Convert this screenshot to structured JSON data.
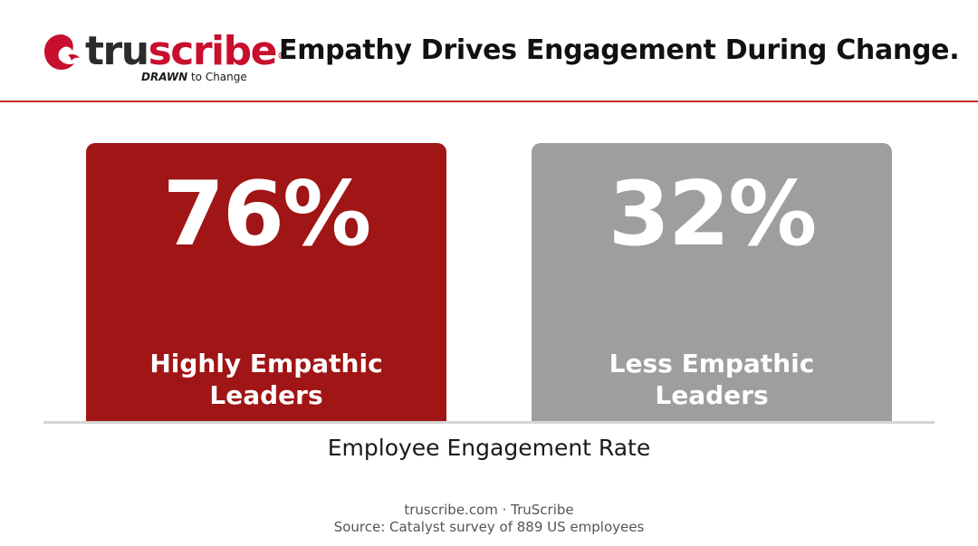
{
  "brand": {
    "name_part1": "tru",
    "name_part2": "scribe",
    "registered": "®",
    "tagline_strong": "DRAWN",
    "tagline_rest": "to Change",
    "colors": {
      "red": "#c8102e",
      "dark": "#2b2b2b"
    }
  },
  "header": {
    "title": "Empathy Drives Engagement During Change."
  },
  "chart_data": {
    "type": "bar",
    "title": "Empathy Drives Engagement During Change.",
    "xlabel": "Employee Engagement Rate",
    "ylabel": "",
    "ylim": [
      0,
      100
    ],
    "grid": false,
    "categories": [
      "Highly Empathic Leaders",
      "Less Empathic Leaders"
    ],
    "category_lines": [
      [
        "Highly Empathic",
        "Leaders"
      ],
      [
        "Less Empathic",
        "Leaders"
      ]
    ],
    "values": [
      76,
      32
    ],
    "value_labels": [
      "76%",
      "32%"
    ],
    "colors": [
      "#a01515",
      "#9e9e9e"
    ]
  },
  "footer": {
    "line1": "truscribe.com · TruScribe",
    "line2": "Source: Catalyst survey of 889 US employees"
  }
}
